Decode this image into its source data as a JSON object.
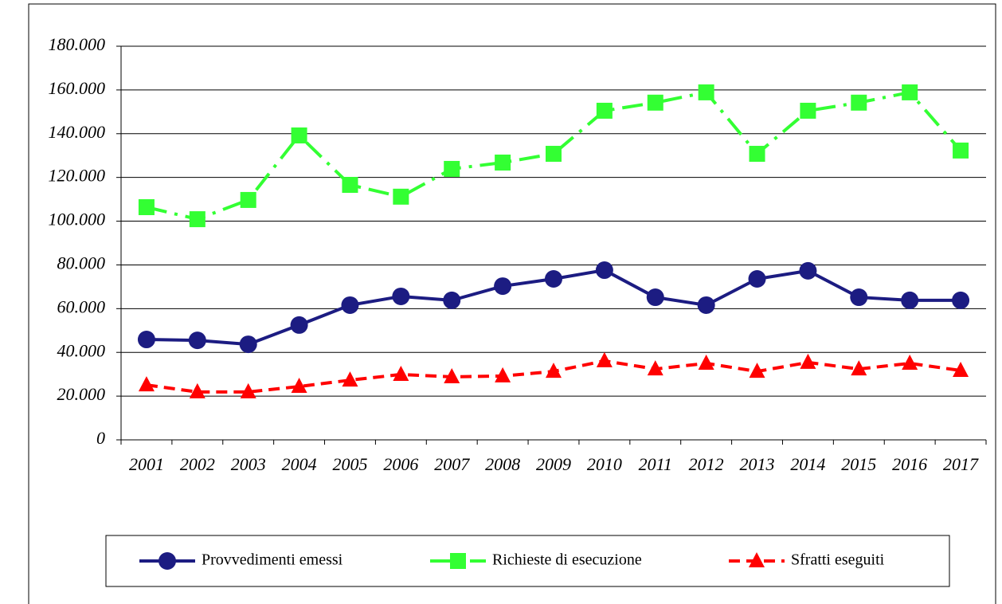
{
  "chart_data": {
    "type": "line",
    "categories": [
      "2001",
      "2002",
      "2003",
      "2004",
      "2005",
      "2006",
      "2007",
      "2008",
      "2009",
      "2010",
      "2011",
      "2012",
      "2013",
      "2014",
      "2015",
      "2016",
      "2017"
    ],
    "series": [
      {
        "name": "Provvedimenti emessi",
        "color": "#1c1c82",
        "marker": "circle",
        "dash": "solid",
        "values": [
          45900,
          45500,
          43700,
          52500,
          61600,
          65600,
          63800,
          70300,
          73600,
          77600,
          65200,
          61600,
          73600,
          77300,
          65200,
          63800,
          63800
        ]
      },
      {
        "name": "Richieste di esecuzione",
        "color": "#33ff33",
        "marker": "square",
        "dash": "dashdot",
        "values": [
          106400,
          100900,
          109700,
          139200,
          116600,
          111200,
          123900,
          126800,
          130800,
          150500,
          154200,
          158900,
          130800,
          150500,
          154200,
          158900,
          132300
        ]
      },
      {
        "name": "Sfratti eseguiti",
        "color": "#ff0000",
        "marker": "triangle",
        "dash": "dashed",
        "values": [
          25100,
          21900,
          21900,
          24400,
          27300,
          29900,
          28800,
          29200,
          31300,
          36100,
          32400,
          35000,
          31300,
          35400,
          32400,
          35000,
          31700
        ]
      }
    ],
    "ylim": [
      0,
      180000
    ],
    "yticks": [
      0,
      {
        "value": 20000,
        "label": "20.000"
      },
      {
        "value": 40000,
        "label": "40.000"
      },
      {
        "value": 60000,
        "label": "60.000"
      },
      {
        "value": 80000,
        "label": "80.000"
      },
      {
        "value": 100000,
        "label": "100.000"
      },
      {
        "value": 120000,
        "label": "120.000"
      },
      {
        "value": 140000,
        "label": "140.000"
      },
      {
        "value": 160000,
        "label": "160.000"
      },
      {
        "value": 180000,
        "label": "180.000"
      }
    ],
    "grid": true,
    "legend": "bottom"
  }
}
